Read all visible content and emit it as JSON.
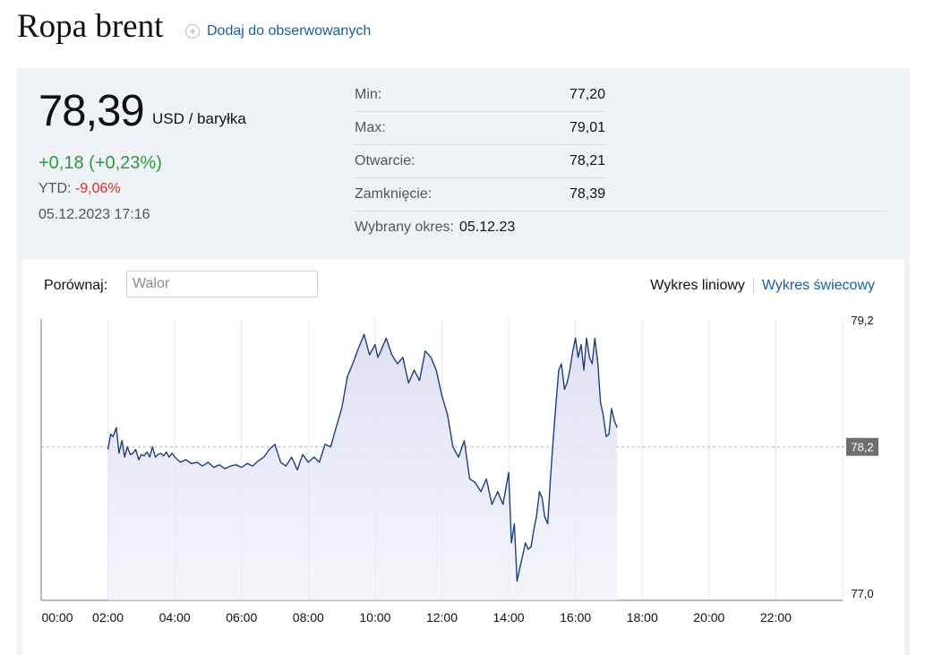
{
  "header": {
    "title": "Ropa brent",
    "watch_label": "Dodaj do obserwowanych",
    "watch_icon": "plus-circle-icon"
  },
  "quote": {
    "price": "78,39",
    "unit": "USD / baryłka",
    "change": "+0,18 (+0,23%)",
    "ytd_label": "YTD:",
    "ytd_value": "-9,06%",
    "datetime": "05.12.2023 17:16",
    "colors": {
      "positive": "#2e9a3c",
      "negative": "#d32f2f"
    }
  },
  "stats": [
    {
      "label": "Min:",
      "value": "77,20"
    },
    {
      "label": "Max:",
      "value": "79,01"
    },
    {
      "label": "Otwarcie:",
      "value": "78,21"
    },
    {
      "label": "Zamknięcie:",
      "value": "78,39"
    }
  ],
  "period": {
    "label": "Wybrany okres:",
    "value": "05.12.23"
  },
  "compare": {
    "label": "Porównaj:",
    "placeholder": "Walor"
  },
  "chart_tabs": {
    "line": "Wykres liniowy",
    "candle": "Wykres świecowy"
  },
  "chart_data": {
    "type": "area",
    "x_unit": "hours",
    "x_ticks": [
      "00:00",
      "02:00",
      "04:00",
      "06:00",
      "08:00",
      "10:00",
      "12:00",
      "14:00",
      "16:00",
      "18:00",
      "20:00",
      "22:00"
    ],
    "y_ticks": [
      "79,2",
      "77,0"
    ],
    "reference": {
      "value": 78.2,
      "label": "78,2"
    },
    "ylim": [
      77.0,
      79.2
    ],
    "xlim": [
      0,
      24
    ],
    "grid": "vertical",
    "series": [
      {
        "color": "#1f3f7a",
        "x": [
          2.0,
          2.08,
          2.15,
          2.25,
          2.33,
          2.42,
          2.5,
          2.58,
          2.67,
          2.75,
          2.83,
          2.92,
          3.0,
          3.08,
          3.17,
          3.25,
          3.33,
          3.42,
          3.5,
          3.58,
          3.67,
          3.75,
          3.83,
          3.92,
          4.0,
          4.17,
          4.33,
          4.5,
          4.67,
          4.83,
          5.0,
          5.17,
          5.33,
          5.5,
          5.67,
          5.83,
          6.0,
          6.17,
          6.33,
          6.5,
          6.67,
          6.83,
          7.0,
          7.17,
          7.33,
          7.5,
          7.67,
          7.83,
          8.0,
          8.17,
          8.33,
          8.5,
          8.67,
          8.83,
          9.0,
          9.17,
          9.33,
          9.5,
          9.67,
          9.83,
          10.0,
          10.08,
          10.17,
          10.33,
          10.5,
          10.67,
          10.83,
          11.0,
          11.17,
          11.33,
          11.5,
          11.67,
          11.83,
          12.0,
          12.17,
          12.33,
          12.5,
          12.67,
          12.83,
          13.0,
          13.17,
          13.33,
          13.5,
          13.67,
          13.83,
          14.0,
          14.08,
          14.17,
          14.25,
          14.33,
          14.42,
          14.5,
          14.58,
          14.67,
          14.75,
          14.83,
          14.92,
          15.0,
          15.08,
          15.17,
          15.25,
          15.33,
          15.42,
          15.5,
          15.58,
          15.67,
          15.75,
          15.83,
          15.92,
          16.0,
          16.08,
          16.17,
          16.25,
          16.33,
          16.42,
          16.5,
          16.58,
          16.67,
          16.75,
          16.83,
          16.92,
          17.0,
          17.08,
          17.17,
          17.25
        ],
        "y": [
          78.18,
          78.3,
          78.28,
          78.35,
          78.15,
          78.25,
          78.12,
          78.2,
          78.14,
          78.15,
          78.18,
          78.1,
          78.14,
          78.13,
          78.16,
          78.12,
          78.2,
          78.12,
          78.14,
          78.15,
          78.13,
          78.16,
          78.12,
          78.15,
          78.12,
          78.08,
          78.1,
          78.07,
          78.08,
          78.05,
          78.08,
          78.04,
          78.06,
          78.03,
          78.05,
          78.06,
          78.04,
          78.07,
          78.05,
          78.09,
          78.12,
          78.18,
          78.22,
          78.08,
          78.05,
          78.12,
          78.02,
          78.14,
          78.08,
          78.12,
          78.08,
          78.22,
          78.2,
          78.35,
          78.5,
          78.75,
          78.85,
          78.97,
          79.08,
          78.92,
          79.0,
          78.9,
          78.95,
          79.05,
          78.92,
          78.85,
          78.9,
          78.7,
          78.8,
          78.72,
          78.95,
          78.9,
          78.8,
          78.6,
          78.45,
          78.2,
          78.12,
          78.25,
          77.95,
          77.92,
          77.85,
          77.95,
          77.75,
          77.85,
          77.75,
          78.0,
          77.45,
          77.6,
          77.15,
          77.25,
          77.35,
          77.45,
          77.4,
          77.42,
          77.55,
          77.65,
          77.85,
          77.8,
          77.65,
          77.6,
          77.95,
          78.25,
          78.55,
          78.8,
          78.85,
          78.65,
          78.7,
          78.8,
          78.95,
          79.05,
          78.9,
          79.0,
          78.8,
          79.05,
          78.9,
          78.85,
          79.05,
          78.85,
          78.55,
          78.45,
          78.28,
          78.3,
          78.5,
          78.4,
          78.35
        ]
      }
    ]
  }
}
